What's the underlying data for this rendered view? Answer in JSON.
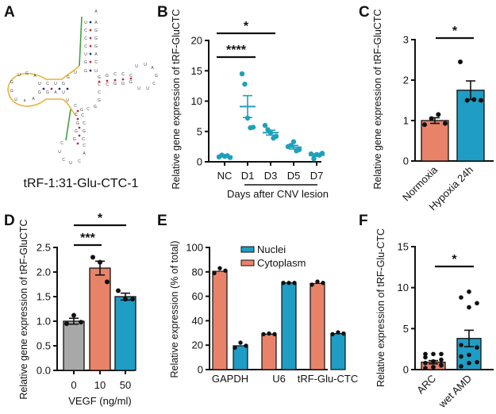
{
  "colors": {
    "teal": "#1fa0ba",
    "blue_bar": "#1f9dc4",
    "salmon": "#e8836a",
    "gray": "#a8a8a8",
    "axis": "#111111",
    "loop_outline": "#e7b438",
    "green_marker": "#3da33d",
    "pair_red": "#c4283a",
    "pair_blue": "#1c2d8f"
  },
  "panelA": {
    "letter": "A",
    "caption": "tRF-1:31-Glu-CTC-1"
  },
  "chart_data": [
    {
      "panel": "B",
      "type": "scatter",
      "title": "",
      "ylabel": "Relative gene expression of tRF-GluCTC",
      "xlabel": "Days after CNV lesion",
      "categories": [
        "NC",
        "D1",
        "D3",
        "D5",
        "D7"
      ],
      "ylim": [
        0,
        20
      ],
      "yticks": [
        0,
        5,
        10,
        15,
        20
      ],
      "points": [
        [
          0.8,
          1.1,
          0.9,
          1.0,
          0.7
        ],
        [
          14.5,
          12.8,
          7.2,
          5.6,
          5.7
        ],
        [
          6.0,
          5.3,
          4.8,
          3.9,
          4.2
        ],
        [
          2.5,
          2.7,
          3.3,
          1.8,
          2.0
        ],
        [
          1.3,
          0.5,
          1.2,
          1.1,
          1.4
        ]
      ],
      "mean": [
        0.9,
        9.1,
        4.8,
        2.4,
        1.1
      ],
      "sem": [
        0.1,
        1.8,
        0.4,
        0.3,
        0.2
      ],
      "significance": [
        {
          "from": "NC",
          "to": "D1",
          "label": "****"
        },
        {
          "from": "NC",
          "to": "D3",
          "label": "*"
        }
      ]
    },
    {
      "panel": "C",
      "type": "bar",
      "ylabel": "Relative gene expression of tRF-GluCTC",
      "xlabel": "",
      "categories": [
        "Normoxia",
        "Hypoxia 24h"
      ],
      "values": [
        1.0,
        1.75
      ],
      "sem": [
        0.07,
        0.23
      ],
      "points": [
        [
          0.9,
          1.05,
          1.15,
          0.93
        ],
        [
          2.45,
          1.5,
          1.52,
          1.5
        ]
      ],
      "ylim": [
        0,
        3
      ],
      "yticks": [
        0,
        1,
        2,
        3
      ],
      "significance": [
        {
          "from": "Normoxia",
          "to": "Hypoxia 24h",
          "label": "*"
        }
      ]
    },
    {
      "panel": "D",
      "type": "bar",
      "ylabel": "Relative gene expression of tRF-GluCTC",
      "xlabel": "VEGF (ng/ml)",
      "categories": [
        "0",
        "10",
        "50"
      ],
      "values": [
        1.0,
        2.08,
        1.5
      ],
      "sem": [
        0.06,
        0.14,
        0.07
      ],
      "points": [
        [
          0.95,
          1.12,
          0.98
        ],
        [
          2.3,
          2.2,
          1.8
        ],
        [
          1.62,
          1.45,
          1.45
        ]
      ],
      "ylim": [
        0,
        2.5
      ],
      "yticks": [
        "0.0",
        "0.5",
        "1.0",
        "1.5",
        "2.0",
        "2.5"
      ],
      "significance": [
        {
          "from": "0",
          "to": "10",
          "label": "***"
        },
        {
          "from": "0",
          "to": "50",
          "label": "*"
        }
      ]
    },
    {
      "panel": "E",
      "type": "bar",
      "ylabel": "Relative expression  (% of total)",
      "xlabel": "",
      "categories": [
        "GAPDH",
        "U6",
        "tRF-Glu-CTC"
      ],
      "ylim": [
        0,
        100
      ],
      "yticks": [
        0,
        20,
        40,
        60,
        80,
        100
      ],
      "legend": "top-center",
      "series": [
        {
          "name": "Cytoplasm",
          "values": [
            80.5,
            29,
            70.5
          ],
          "points": [
            [
              79,
              83,
              81
            ],
            [
              29,
              29.5,
              29
            ],
            [
              69.5,
              72,
              71
            ]
          ]
        },
        {
          "name": "Nuclei",
          "values": [
            19.5,
            71,
            29.5
          ],
          "points": [
            [
              18,
              22,
              19.5
            ],
            [
              71,
              71,
              71
            ],
            [
              29,
              30.5,
              29.5
            ]
          ]
        }
      ]
    },
    {
      "panel": "F",
      "type": "bar",
      "ylabel": "Relative expression of tRF-Glu-CTC",
      "xlabel": "",
      "categories": [
        "ARC",
        "wet AMD"
      ],
      "values": [
        0.9,
        3.8
      ],
      "sem": [
        0.2,
        1.0
      ],
      "points": [
        [
          0.2,
          0.3,
          0.5,
          0.8,
          1.0,
          1.2,
          1.5,
          1.9,
          1.9,
          1.9,
          0.3,
          0.6
        ],
        [
          0.4,
          0.8,
          0.9,
          1.6,
          1.8,
          2.7,
          3.0,
          7.6,
          8.1,
          8.8,
          9.5
        ]
      ],
      "ylim": [
        0,
        15
      ],
      "yticks": [
        0,
        5,
        10,
        15
      ],
      "significance": [
        {
          "from": "ARC",
          "to": "wet AMD",
          "label": "*"
        }
      ]
    }
  ]
}
